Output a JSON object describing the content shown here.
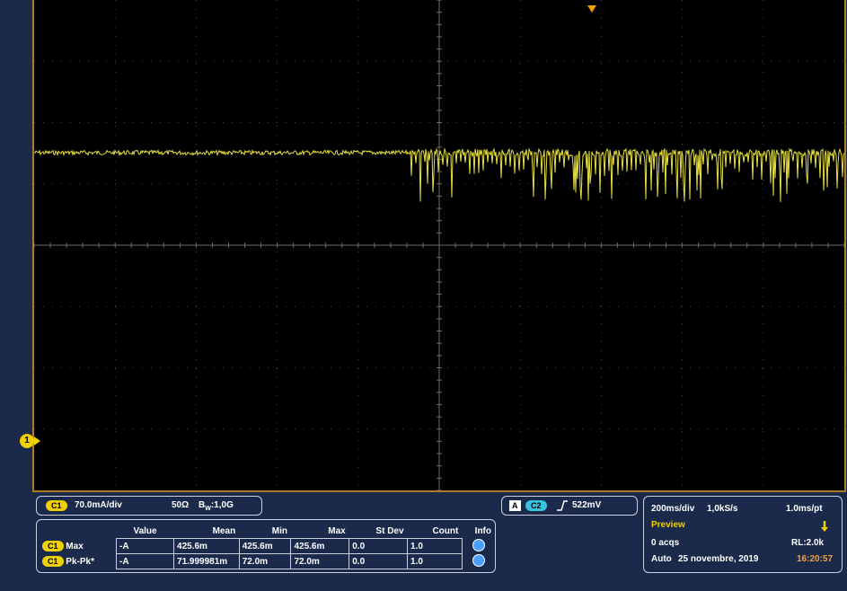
{
  "colors": {
    "trace": "#e8e040",
    "grid": "#4a4a4a",
    "frame": "#b07a2a",
    "channel1": "#f0d000",
    "channel2": "#36c3e0"
  },
  "marker": {
    "label": "1"
  },
  "channel_panel": {
    "chip": "C1",
    "scale": "70.0mA/div",
    "impedance": "50Ω",
    "bandwidth": "B",
    "bandwidth_sub": "W",
    "bandwidth_value": ":1,0G"
  },
  "trigger_panel": {
    "mode_letter": "A",
    "source": "C2",
    "slope_icon": "rising-edge-icon",
    "level": "522mV"
  },
  "timebase_panel": {
    "time_div": "200ms/div",
    "sample_rate": "1,0kS/s",
    "per_point": "1.0ms/pt",
    "status": "Preview",
    "acqs": "0 acqs",
    "record_length": "RL:2.0k",
    "mode": "Auto",
    "date": "25 novembre, 2019",
    "time": "16:20:57"
  },
  "measurements": {
    "headers": [
      "",
      "Value",
      "Mean",
      "Min",
      "Max",
      "St Dev",
      "Count",
      "Info"
    ],
    "rows": [
      {
        "chip": "C1",
        "name": "Max",
        "value": "-A",
        "mean": "425.6m",
        "min": "425.6m",
        "max": "425.6m",
        "stdev": "0.0",
        "count": "1.0",
        "info_icon": "info-icon"
      },
      {
        "chip": "C1",
        "name": "Pk-Pk*",
        "value": "-A",
        "mean": "71.999981m",
        "min": "72.0m",
        "max": "72.0m",
        "stdev": "0.0",
        "count": "1.0",
        "info_icon": "info-icon"
      }
    ]
  }
}
